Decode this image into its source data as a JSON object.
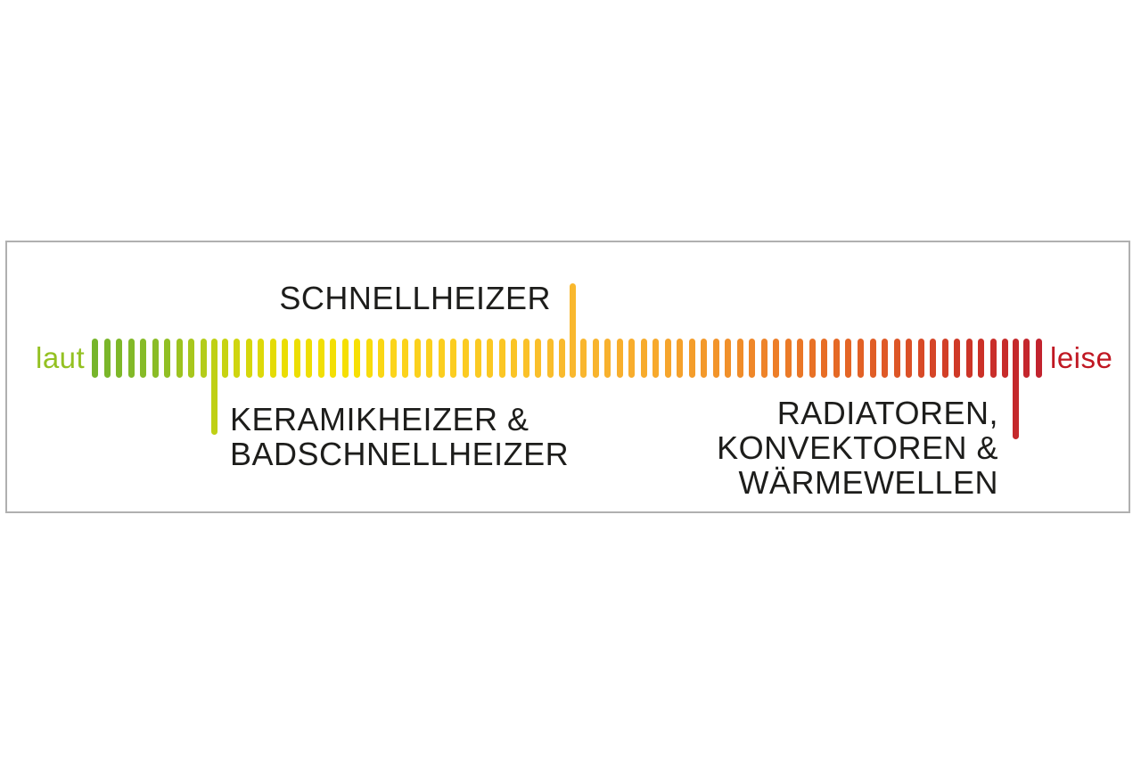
{
  "panel": {
    "border_color": "#b0b0b0",
    "background": "#ffffff"
  },
  "scale": {
    "meaning": "noise level scale from loud to quiet",
    "left_label": {
      "text": "laut",
      "color": "#94c122"
    },
    "right_label": {
      "text": "leise",
      "color": "#c01823"
    },
    "bar_count": 80,
    "gradient_stops": [
      {
        "pos": 0.0,
        "color": "#76b52b"
      },
      {
        "pos": 0.07,
        "color": "#8cbd26"
      },
      {
        "pos": 0.13,
        "color": "#c2d114"
      },
      {
        "pos": 0.2,
        "color": "#eadd04"
      },
      {
        "pos": 0.28,
        "color": "#f7e004"
      },
      {
        "pos": 0.31,
        "color": "#fbd51a"
      },
      {
        "pos": 0.42,
        "color": "#fbc823"
      },
      {
        "pos": 0.5,
        "color": "#f9b92e"
      },
      {
        "pos": 0.6,
        "color": "#f7a82c"
      },
      {
        "pos": 0.7,
        "color": "#ef8629"
      },
      {
        "pos": 0.78,
        "color": "#e66a25"
      },
      {
        "pos": 0.85,
        "color": "#dd5527"
      },
      {
        "pos": 0.92,
        "color": "#cd3527"
      },
      {
        "pos": 1.0,
        "color": "#c2232e"
      }
    ],
    "markers": [
      {
        "id": "keramikheizer",
        "index": 10,
        "direction": "down-short",
        "label": "KERAMIKHEIZER &\nBADSCHNELLHEIZER"
      },
      {
        "id": "schnellheizer",
        "index": 40,
        "direction": "up",
        "label": "SCHNELLHEIZER"
      },
      {
        "id": "radiatoren",
        "index": 77,
        "direction": "down-long",
        "label": "RADIATOREN,\nKONVEKTOREN &\nWÄRMEWELLEN"
      }
    ]
  }
}
